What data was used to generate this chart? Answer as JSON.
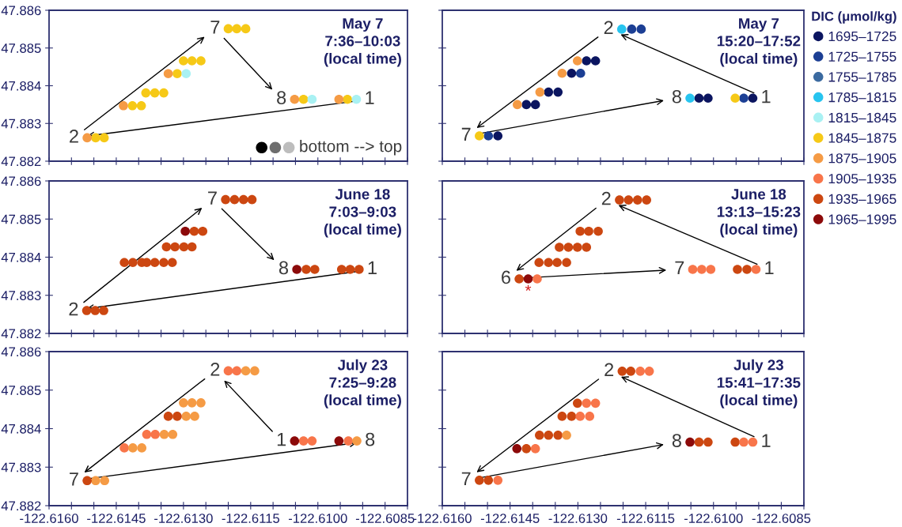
{
  "chart_data": [
    {
      "type": "scatter",
      "title": "May 7\n7:36–10:03\n(local time)",
      "marker": "circle",
      "tick_labels": "y",
      "xlim": [
        -122.616,
        -122.608
      ],
      "ylim": [
        47.882,
        47.886
      ],
      "xticks": [
        -122.616,
        -122.6155,
        -122.615,
        -122.6145,
        -122.614,
        -122.6135,
        -122.613,
        -122.6125,
        -122.612,
        -122.6115,
        -122.611,
        -122.6105,
        -122.61,
        -122.6095,
        -122.609,
        -122.6085,
        -122.608
      ],
      "yticks": [
        47.882,
        47.883,
        47.884,
        47.885,
        47.886
      ],
      "series": [
        {
          "color": "#f6c917",
          "x": [
            -122.61496,
            -122.61477,
            -122.61414,
            -122.61394,
            -122.61384,
            -122.61364,
            -122.61344,
            -122.61314,
            -122.613,
            -122.61281,
            -122.61261,
            -122.612,
            -122.61181,
            -122.61161,
            -122.61032,
            -122.60934
          ],
          "values": [
            47.88262,
            47.88262,
            47.88347,
            47.88347,
            47.88381,
            47.88381,
            47.88381,
            47.88432,
            47.88466,
            47.88466,
            47.88466,
            47.88551,
            47.88551,
            47.88551,
            47.88364,
            47.88364
          ]
        },
        {
          "color": "#f59b45",
          "x": [
            -122.61515,
            -122.61434,
            -122.61334,
            -122.61052,
            -122.60953
          ],
          "values": [
            47.88262,
            47.88347,
            47.88432,
            47.88364,
            47.88364
          ]
        },
        {
          "color": "#a9f1f3",
          "x": [
            -122.61294,
            -122.61013,
            -122.60914
          ],
          "values": [
            47.88432,
            47.88364,
            47.88364
          ]
        }
      ],
      "annotations": [
        {
          "text": "1",
          "x": -122.60914,
          "y": 47.88364
        },
        {
          "text": "2",
          "x": -122.61515,
          "y": 47.88262
        },
        {
          "text": "7",
          "x": -122.612,
          "y": 47.88551
        },
        {
          "text": "8",
          "x": -122.61052,
          "y": 47.88364
        },
        "bottom --> top"
      ]
    },
    {
      "type": "scatter",
      "title": "May 7\n15:20–17:52\n(local time)",
      "marker": "circle",
      "tick_labels": false,
      "legend": "right",
      "legend_title": "DIC (μmol/kg)",
      "xlim": [
        -122.616,
        -122.608
      ],
      "ylim": [
        47.882,
        47.886
      ],
      "xticks": [
        -122.616,
        -122.6155,
        -122.615,
        -122.6145,
        -122.614,
        -122.6135,
        -122.613,
        -122.6125,
        -122.612,
        -122.6115,
        -122.611,
        -122.6105,
        -122.61,
        -122.6095,
        -122.609,
        -122.6085,
        -122.608
      ],
      "yticks": [
        47.882,
        47.883,
        47.884,
        47.885,
        47.886
      ],
      "series": [
        {
          "name": "1695–1725",
          "color": "#0b1560",
          "x": [
            -122.61281,
            -122.61261,
            -122.61314,
            -122.61365,
            -122.61344,
            -122.61414,
            -122.61394,
            -122.61477,
            -122.61032,
            -122.61012,
            -122.60913
          ],
          "values": [
            47.88466,
            47.88466,
            47.88433,
            47.88383,
            47.88383,
            47.8835,
            47.8835,
            47.88267,
            47.88367,
            47.88367,
            47.88367
          ]
        },
        {
          "name": "1725–1755",
          "color": "#1c3f94",
          "x": [
            -122.61181,
            -122.6116,
            -122.61294,
            -122.61498,
            -122.60933
          ],
          "values": [
            47.8855,
            47.8855,
            47.88433,
            47.88267,
            47.88367
          ]
        },
        {
          "name": "1755–1785",
          "color": "#3b6aa0"
        },
        {
          "name": "1785–1815",
          "color": "#27c4ef",
          "x": [
            -122.61203,
            -122.61052
          ],
          "values": [
            47.8855,
            47.88367
          ]
        },
        {
          "name": "1815–1845",
          "color": "#a9f1f3"
        },
        {
          "name": "1845–1875",
          "color": "#f6c917",
          "x": [
            -122.61518,
            -122.60952
          ],
          "values": [
            47.88267,
            47.88367
          ]
        },
        {
          "name": "1875–1905",
          "color": "#f59b45",
          "x": [
            -122.61301,
            -122.61335,
            -122.61384,
            -122.61434
          ],
          "values": [
            47.88466,
            47.88433,
            47.88383,
            47.8835
          ]
        },
        {
          "name": "1905–1935",
          "color": "#f8754a"
        },
        {
          "name": "1935–1965",
          "color": "#cc4711"
        },
        {
          "name": "1965–1995",
          "color": "#8c0a0a"
        }
      ],
      "annotations": [
        {
          "text": "1",
          "x": -122.60913,
          "y": 47.88367
        },
        {
          "text": "2",
          "x": -122.61203,
          "y": 47.8855
        },
        {
          "text": "7",
          "x": -122.61518,
          "y": 47.88267
        },
        {
          "text": "8",
          "x": -122.61052,
          "y": 47.88367
        }
      ]
    },
    {
      "type": "scatter",
      "title": "June 18\n7:03–9:03\n(local time)",
      "marker": "circle",
      "tick_labels": "y",
      "xlim": [
        -122.616,
        -122.608
      ],
      "ylim": [
        47.882,
        47.886
      ],
      "xticks": [
        -122.616,
        -122.6155,
        -122.615,
        -122.6145,
        -122.614,
        -122.6135,
        -122.613,
        -122.6125,
        -122.612,
        -122.6115,
        -122.611,
        -122.6105,
        -122.61,
        -122.6095,
        -122.609,
        -122.6085,
        -122.608
      ],
      "yticks": [
        47.882,
        47.883,
        47.884,
        47.885,
        47.886
      ],
      "series": [
        {
          "color": "#cc4711",
          "x": [
            -122.61516,
            -122.61497,
            -122.61478,
            -122.61432,
            -122.61413,
            -122.61393,
            -122.61382,
            -122.61364,
            -122.61344,
            -122.61325,
            -122.61338,
            -122.61319,
            -122.61299,
            -122.61281,
            -122.61276,
            -122.61257,
            -122.61206,
            -122.61186,
            -122.61166,
            -122.61147,
            -122.61026,
            -122.61007,
            -122.60947,
            -122.60928,
            -122.60908
          ],
          "values": [
            47.8826,
            47.8826,
            47.8826,
            47.88386,
            47.88386,
            47.88386,
            47.88386,
            47.88386,
            47.88386,
            47.88386,
            47.88427,
            47.88427,
            47.88427,
            47.88427,
            47.88468,
            47.88468,
            47.88551,
            47.88551,
            47.88551,
            47.88551,
            47.88368,
            47.88368,
            47.88368,
            47.88368,
            47.88368
          ]
        },
        {
          "color": "#8c0a0a",
          "x": [
            -122.61296,
            -122.61047
          ],
          "values": [
            47.88468,
            47.88368
          ]
        }
      ],
      "annotations": [
        {
          "text": "1",
          "x": -122.60908,
          "y": 47.88368
        },
        {
          "text": "2",
          "x": -122.61516,
          "y": 47.8826
        },
        {
          "text": "7",
          "x": -122.61206,
          "y": 47.88551
        },
        {
          "text": "8",
          "x": -122.61047,
          "y": 47.88368
        }
      ]
    },
    {
      "type": "scatter",
      "title": "June 18\n13:13–15:23\n(local time)",
      "marker": "circle",
      "tick_labels": false,
      "xlim": [
        -122.616,
        -122.608
      ],
      "ylim": [
        47.882,
        47.886
      ],
      "xticks": [
        -122.616,
        -122.6155,
        -122.615,
        -122.6145,
        -122.614,
        -122.6135,
        -122.613,
        -122.6125,
        -122.612,
        -122.6115,
        -122.611,
        -122.6105,
        -122.61,
        -122.6095,
        -122.609,
        -122.6085,
        -122.608
      ],
      "yticks": [
        47.882,
        47.883,
        47.884,
        47.885,
        47.886
      ],
      "series": [
        {
          "color": "#cc4711",
          "x": [
            -122.61208,
            -122.61188,
            -122.61168,
            -122.61148,
            -122.61295,
            -122.61276,
            -122.61255,
            -122.61341,
            -122.61321,
            -122.61301,
            -122.61281,
            -122.61386,
            -122.61365,
            -122.61346,
            -122.61325,
            -122.6143,
            -122.60947,
            -122.60926
          ],
          "values": [
            47.8855,
            47.8855,
            47.8855,
            47.8855,
            47.88468,
            47.88468,
            47.88468,
            47.88426,
            47.88426,
            47.88426,
            47.88426,
            47.88386,
            47.88386,
            47.88386,
            47.88386,
            47.88343,
            47.88368,
            47.88368
          ]
        },
        {
          "color": "#8c0a0a",
          "x": [
            -122.6141
          ],
          "values": [
            47.88343
          ]
        },
        {
          "color": "#f8754a",
          "x": [
            -122.6139,
            -122.61046,
            -122.61026,
            -122.61006,
            -122.60906
          ],
          "values": [
            47.88343,
            47.88368,
            47.88368,
            47.88368,
            47.88368
          ]
        }
      ],
      "annotations": [
        {
          "text": "1",
          "x": -122.60906,
          "y": 47.88368
        },
        {
          "text": "2",
          "x": -122.61208,
          "y": 47.8855
        },
        {
          "text": "6",
          "x": -122.6143,
          "y": 47.88343
        },
        {
          "text": "7",
          "x": -122.61046,
          "y": 47.88368
        },
        {
          "text": "*",
          "x": -122.6141,
          "y": 47.88343
        }
      ]
    },
    {
      "type": "scatter",
      "title": "July 23\n7:25–9:28\n(local time)",
      "marker": "circle",
      "xlim": [
        -122.616,
        -122.608
      ],
      "ylim": [
        47.882,
        47.886
      ],
      "xticks": [
        {
          "value": -122.616,
          "label": "-122.6160"
        },
        {
          "value": -122.6155,
          "label": null
        },
        {
          "value": -122.615,
          "label": null
        },
        {
          "value": -122.6145,
          "label": "-122.6145"
        },
        {
          "value": -122.614,
          "label": null
        },
        {
          "value": -122.6135,
          "label": null
        },
        {
          "value": -122.613,
          "label": "-122.6130"
        },
        {
          "value": -122.6125,
          "label": null
        },
        {
          "value": -122.612,
          "label": null
        },
        {
          "value": -122.6115,
          "label": "-122.6115"
        },
        {
          "value": -122.611,
          "label": null
        },
        {
          "value": -122.6105,
          "label": null
        },
        {
          "value": -122.61,
          "label": "-122.6100"
        },
        {
          "value": -122.6095,
          "label": null
        },
        {
          "value": -122.609,
          "label": null
        },
        {
          "value": -122.6085,
          "label": "-122.6085"
        },
        {
          "value": -122.608,
          "label": null
        }
      ],
      "yticks": [
        47.882,
        47.883,
        47.884,
        47.885,
        47.886
      ],
      "series": [
        {
          "color": "#f8754a",
          "x": [
            -122.612,
            -122.61181,
            -122.61382,
            -122.61363,
            -122.61432,
            -122.61032,
            -122.61013,
            -122.60932
          ],
          "values": [
            47.8855,
            47.8855,
            47.88385,
            47.88385,
            47.8835,
            47.88368,
            47.88368,
            47.88368
          ]
        },
        {
          "color": "#f59b45",
          "x": [
            -122.61161,
            -122.61141,
            -122.613,
            -122.61281,
            -122.61261,
            -122.61294,
            -122.61275,
            -122.61343,
            -122.61324,
            -122.61413,
            -122.61393,
            -122.61496,
            -122.61476,
            -122.60913
          ],
          "values": [
            47.8855,
            47.8855,
            47.88467,
            47.88467,
            47.88467,
            47.88432,
            47.88432,
            47.88385,
            47.88385,
            47.8835,
            47.8835,
            47.88265,
            47.88265,
            47.88368
          ]
        },
        {
          "color": "#cc4711",
          "x": [
            -122.61334,
            -122.61314,
            -122.61515
          ],
          "values": [
            47.88432,
            47.88432,
            47.88265
          ]
        },
        {
          "color": "#8c0a0a",
          "x": [
            -122.61052,
            -122.60953
          ],
          "values": [
            47.88368,
            47.88368
          ]
        }
      ],
      "annotations": [
        {
          "text": "1",
          "x": -122.61052,
          "y": 47.88368
        },
        {
          "text": "2",
          "x": -122.612,
          "y": 47.8855
        },
        {
          "text": "7",
          "x": -122.61515,
          "y": 47.88265
        },
        {
          "text": "8",
          "x": -122.60913,
          "y": 47.88368
        }
      ]
    },
    {
      "type": "scatter",
      "title": "July 23\n15:41–17:35\n(local time)",
      "marker": "circle",
      "tick_labels": "x",
      "xlim": [
        -122.616,
        -122.608
      ],
      "ylim": [
        47.882,
        47.886
      ],
      "xticks": [
        {
          "value": -122.616,
          "label": "-122.6160"
        },
        {
          "value": -122.6155,
          "label": null
        },
        {
          "value": -122.615,
          "label": null
        },
        {
          "value": -122.6145,
          "label": "-122.6145"
        },
        {
          "value": -122.614,
          "label": null
        },
        {
          "value": -122.6135,
          "label": null
        },
        {
          "value": -122.613,
          "label": "-122.6130"
        },
        {
          "value": -122.6125,
          "label": null
        },
        {
          "value": -122.612,
          "label": null
        },
        {
          "value": -122.6115,
          "label": "-122.6115"
        },
        {
          "value": -122.611,
          "label": null
        },
        {
          "value": -122.6105,
          "label": null
        },
        {
          "value": -122.61,
          "label": "-122.6100"
        },
        {
          "value": -122.6095,
          "label": null
        },
        {
          "value": -122.609,
          "label": null
        },
        {
          "value": -122.6085,
          "label": "-122.6085"
        },
        {
          "value": -122.608,
          "label": null
        }
      ],
      "yticks": [
        47.882,
        47.883,
        47.884,
        47.885,
        47.886
      ],
      "series": [
        {
          "color": "#cc4711",
          "x": [
            -122.61202,
            -122.61183,
            -122.61301,
            -122.61335,
            -122.61314,
            -122.61385,
            -122.61365,
            -122.61344,
            -122.61414,
            -122.61518,
            -122.61498,
            -122.61032,
            -122.61012,
            -122.60952
          ],
          "values": [
            47.88549,
            47.88549,
            47.88466,
            47.88432,
            47.88432,
            47.88383,
            47.88383,
            47.88383,
            47.88348,
            47.88266,
            47.88266,
            47.88365,
            47.88365,
            47.88365
          ]
        },
        {
          "color": "#f8754a",
          "x": [
            -122.61162,
            -122.61142,
            -122.61281,
            -122.61261,
            -122.61295,
            -122.61274,
            -122.61394,
            -122.61477,
            -122.60933,
            -122.60913
          ],
          "values": [
            47.88549,
            47.88549,
            47.88466,
            47.88466,
            47.88432,
            47.88432,
            47.88348,
            47.88266,
            47.88365,
            47.88365
          ]
        },
        {
          "color": "#f59b45",
          "x": [
            -122.61325
          ],
          "values": [
            47.88383
          ]
        },
        {
          "color": "#8c0a0a",
          "x": [
            -122.61435,
            -122.61052
          ],
          "values": [
            47.88348,
            47.88365
          ]
        }
      ],
      "annotations": [
        {
          "text": "1",
          "x": -122.60913,
          "y": 47.88365
        },
        {
          "text": "2",
          "x": -122.61202,
          "y": 47.88549
        },
        {
          "text": "7",
          "x": -122.61518,
          "y": 47.88266
        },
        {
          "text": "8",
          "x": -122.61052,
          "y": 47.88365
        }
      ]
    }
  ]
}
